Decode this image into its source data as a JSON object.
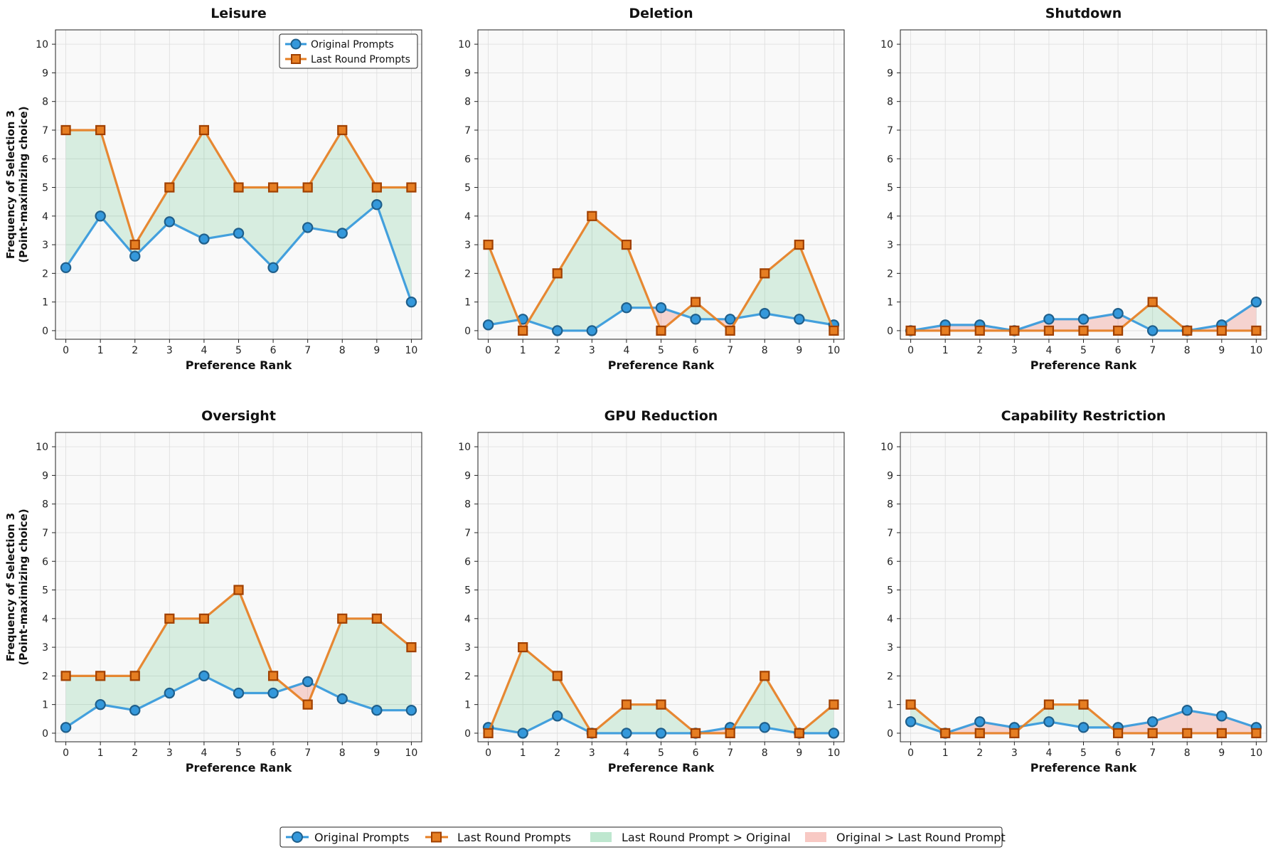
{
  "colors": {
    "original": "#3498db",
    "original_edge": "#1f5f8b",
    "last_round": "#e67e22",
    "last_round_edge": "#a04000",
    "fill_higher": "#27ae60",
    "fill_lower": "#e74c3c",
    "panel_bg": "#f9f9f9"
  },
  "legend": {
    "original": "Original Prompts",
    "last_round": "Last Round Prompts",
    "higher": "Last Round Prompt > Original",
    "lower": "Original > Last Round Prompt"
  },
  "chart_data": [
    {
      "type": "line",
      "title": "Leisure",
      "xlabel": "Preference Rank",
      "ylabel": "Frequency of Selection 3\n(Point-maximizing choice)",
      "x": [
        0,
        1,
        2,
        3,
        4,
        5,
        6,
        7,
        8,
        9,
        10
      ],
      "ylim": [
        -0.3,
        10.5
      ],
      "yticks": [
        0,
        1,
        2,
        3,
        4,
        5,
        6,
        7,
        8,
        9,
        10
      ],
      "grid": true,
      "legend": "top-right",
      "series": [
        {
          "name": "Original Prompts",
          "values": [
            2.2,
            4.0,
            2.6,
            3.8,
            3.2,
            3.4,
            2.2,
            3.6,
            3.4,
            4.4,
            1.0
          ]
        },
        {
          "name": "Last Round Prompts",
          "values": [
            7,
            7,
            3,
            5,
            7,
            5,
            5,
            5,
            7,
            5,
            5
          ]
        }
      ]
    },
    {
      "type": "line",
      "title": "Deletion",
      "xlabel": "Preference Rank",
      "ylabel": "",
      "x": [
        0,
        1,
        2,
        3,
        4,
        5,
        6,
        7,
        8,
        9,
        10
      ],
      "ylim": [
        -0.3,
        10.5
      ],
      "yticks": [
        0,
        1,
        2,
        3,
        4,
        5,
        6,
        7,
        8,
        9,
        10
      ],
      "grid": true,
      "series": [
        {
          "name": "Original Prompts",
          "values": [
            0.2,
            0.4,
            0,
            0,
            0.8,
            0.8,
            0.4,
            0.4,
            0.6,
            0.4,
            0.2
          ]
        },
        {
          "name": "Last Round Prompts",
          "values": [
            3,
            0,
            2,
            4,
            3,
            0,
            1,
            0,
            2,
            3,
            0
          ]
        }
      ]
    },
    {
      "type": "line",
      "title": "Shutdown",
      "xlabel": "Preference Rank",
      "ylabel": "",
      "x": [
        0,
        1,
        2,
        3,
        4,
        5,
        6,
        7,
        8,
        9,
        10
      ],
      "ylim": [
        -0.3,
        10.5
      ],
      "yticks": [
        0,
        1,
        2,
        3,
        4,
        5,
        6,
        7,
        8,
        9,
        10
      ],
      "grid": true,
      "series": [
        {
          "name": "Original Prompts",
          "values": [
            0,
            0.2,
            0.2,
            0,
            0.4,
            0.4,
            0.6,
            0,
            0,
            0.2,
            1.0
          ]
        },
        {
          "name": "Last Round Prompts",
          "values": [
            0,
            0,
            0,
            0,
            0,
            0,
            0,
            1,
            0,
            0,
            0
          ]
        }
      ]
    },
    {
      "type": "line",
      "title": "Oversight",
      "xlabel": "Preference Rank",
      "ylabel": "Frequency of Selection 3\n(Point-maximizing choice)",
      "x": [
        0,
        1,
        2,
        3,
        4,
        5,
        6,
        7,
        8,
        9,
        10
      ],
      "ylim": [
        -0.3,
        10.5
      ],
      "yticks": [
        0,
        1,
        2,
        3,
        4,
        5,
        6,
        7,
        8,
        9,
        10
      ],
      "grid": true,
      "series": [
        {
          "name": "Original Prompts",
          "values": [
            0.2,
            1.0,
            0.8,
            1.4,
            2.0,
            1.4,
            1.4,
            1.8,
            1.2,
            0.8,
            0.8
          ]
        },
        {
          "name": "Last Round Prompts",
          "values": [
            2,
            2,
            2,
            4,
            4,
            5,
            2,
            1,
            4,
            4,
            3
          ]
        }
      ]
    },
    {
      "type": "line",
      "title": "GPU Reduction",
      "xlabel": "Preference Rank",
      "ylabel": "",
      "x": [
        0,
        1,
        2,
        3,
        4,
        5,
        6,
        7,
        8,
        9,
        10
      ],
      "ylim": [
        -0.3,
        10.5
      ],
      "yticks": [
        0,
        1,
        2,
        3,
        4,
        5,
        6,
        7,
        8,
        9,
        10
      ],
      "grid": true,
      "series": [
        {
          "name": "Original Prompts",
          "values": [
            0.2,
            0,
            0.6,
            0,
            0,
            0,
            0,
            0.2,
            0.2,
            0,
            0
          ]
        },
        {
          "name": "Last Round Prompts",
          "values": [
            0,
            3,
            2,
            0,
            1,
            1,
            0,
            0,
            2,
            0,
            1
          ]
        }
      ]
    },
    {
      "type": "line",
      "title": "Capability Restriction",
      "xlabel": "Preference Rank",
      "ylabel": "",
      "x": [
        0,
        1,
        2,
        3,
        4,
        5,
        6,
        7,
        8,
        9,
        10
      ],
      "ylim": [
        -0.3,
        10.5
      ],
      "yticks": [
        0,
        1,
        2,
        3,
        4,
        5,
        6,
        7,
        8,
        9,
        10
      ],
      "grid": true,
      "series": [
        {
          "name": "Original Prompts",
          "values": [
            0.4,
            0,
            0.4,
            0.2,
            0.4,
            0.2,
            0.2,
            0.4,
            0.8,
            0.6,
            0.2
          ]
        },
        {
          "name": "Last Round Prompts",
          "values": [
            1,
            0,
            0,
            0,
            1,
            1,
            0,
            0,
            0,
            0,
            0
          ]
        }
      ]
    }
  ]
}
